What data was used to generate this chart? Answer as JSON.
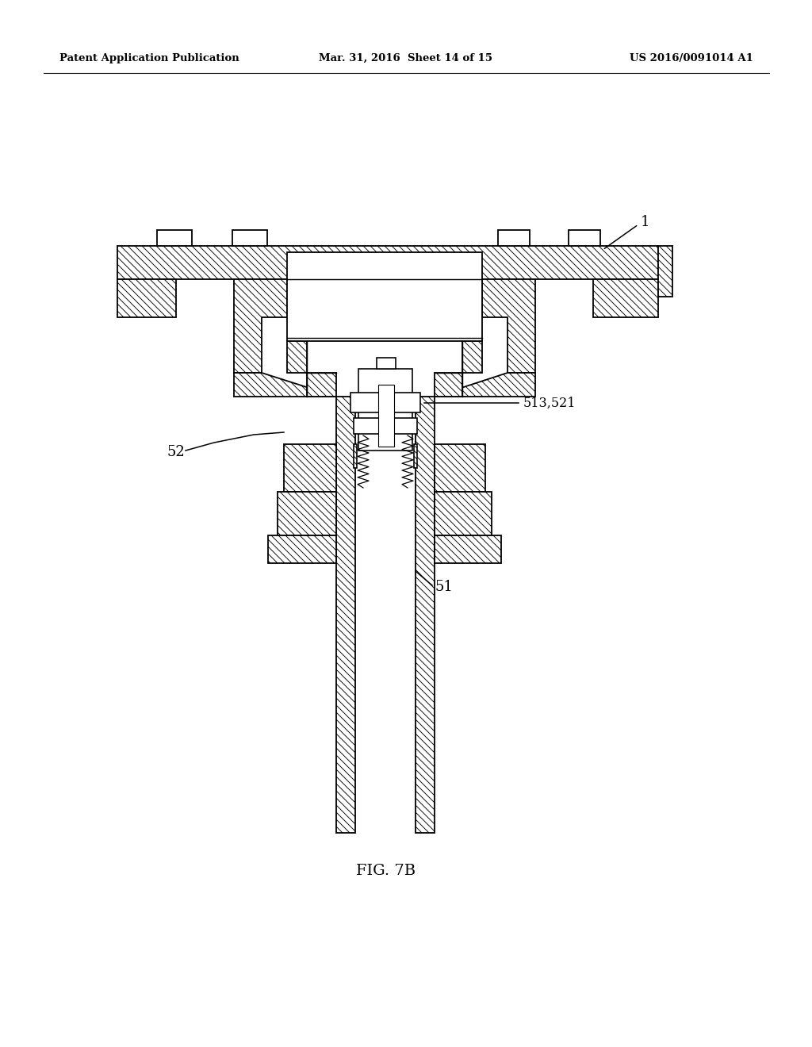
{
  "background_color": "#ffffff",
  "line_color": "#000000",
  "header_left": "Patent Application Publication",
  "header_mid": "Mar. 31, 2016  Sheet 14 of 15",
  "header_right": "US 2016/0091014 A1",
  "caption": "FIG. 7B",
  "label_1": "1",
  "label_51": "51",
  "label_52": "52",
  "label_513_521": "513,521",
  "fig_width": 10.24,
  "fig_height": 13.2,
  "dpi": 100
}
